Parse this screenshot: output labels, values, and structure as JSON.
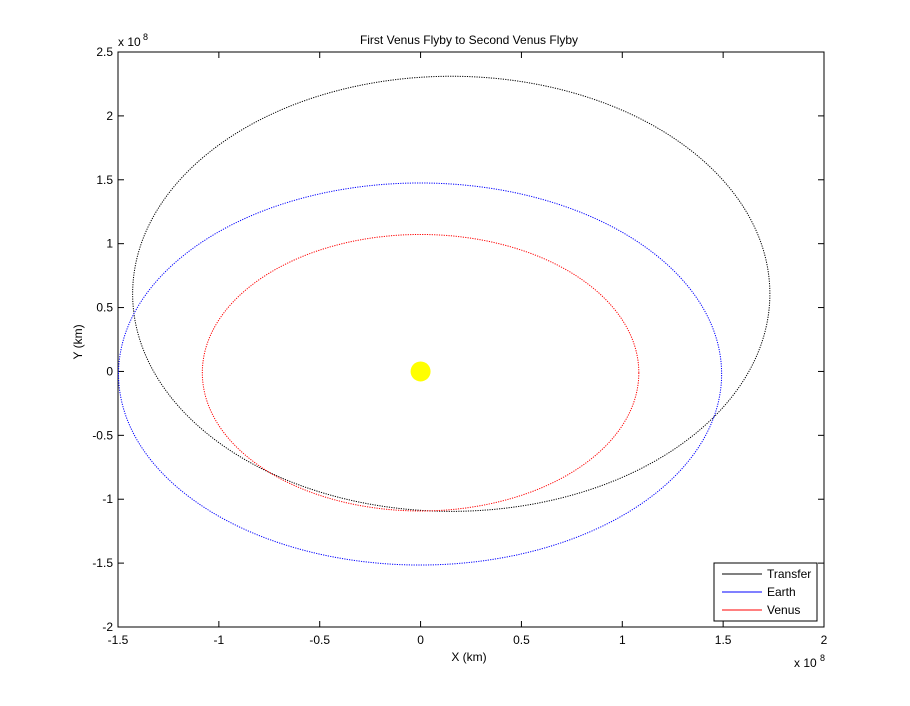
{
  "chart_data": {
    "type": "line",
    "title": "First Venus Flyby to Second Venus Flyby",
    "xlabel": "X (km)",
    "ylabel": "Y (km)",
    "x_exponent": "x 10",
    "x_exponent_power": "8",
    "y_exponent": "x 10",
    "y_exponent_power": "8",
    "xlim": [
      -1.5,
      2.0
    ],
    "ylim": [
      -2.0,
      2.5
    ],
    "xticks": [
      -1.5,
      -1,
      -0.5,
      0,
      0.5,
      1,
      1.5,
      2
    ],
    "xtick_labels": [
      "-1.5",
      "-1",
      "-0.5",
      "0",
      "0.5",
      "1",
      "1.5",
      "2"
    ],
    "yticks": [
      -2,
      -1.5,
      -1,
      -0.5,
      0,
      0.5,
      1,
      1.5,
      2,
      2.5
    ],
    "ytick_labels": [
      "-2",
      "-1.5",
      "-1",
      "-0.5",
      "0",
      "0.5",
      "1",
      "1.5",
      "2",
      "2.5"
    ],
    "grid": false,
    "legend_position": "bottom-right",
    "series": [
      {
        "name": "Transfer",
        "color": "#000000",
        "style": "dotted",
        "ellipse": {
          "cx": 0.1521,
          "cy": 0.6076,
          "rx": 1.5796,
          "ry": 1.7025,
          "rotation_deg": 0,
          "ecc_hint": "orbit"
        }
      },
      {
        "name": "Earth",
        "color": "#0000ff",
        "style": "dotted",
        "ellipse": {
          "cx": -0.0025,
          "cy": -0.02,
          "rx": 1.495,
          "ry": 1.495
        }
      },
      {
        "name": "Venus",
        "color": "#ff0000",
        "style": "dotted",
        "ellipse": {
          "cx": 0.0,
          "cy": -0.01,
          "rx": 1.082,
          "ry": 1.082
        }
      }
    ],
    "sun": {
      "x": 0,
      "y": 0,
      "color": "#ffff00"
    }
  }
}
